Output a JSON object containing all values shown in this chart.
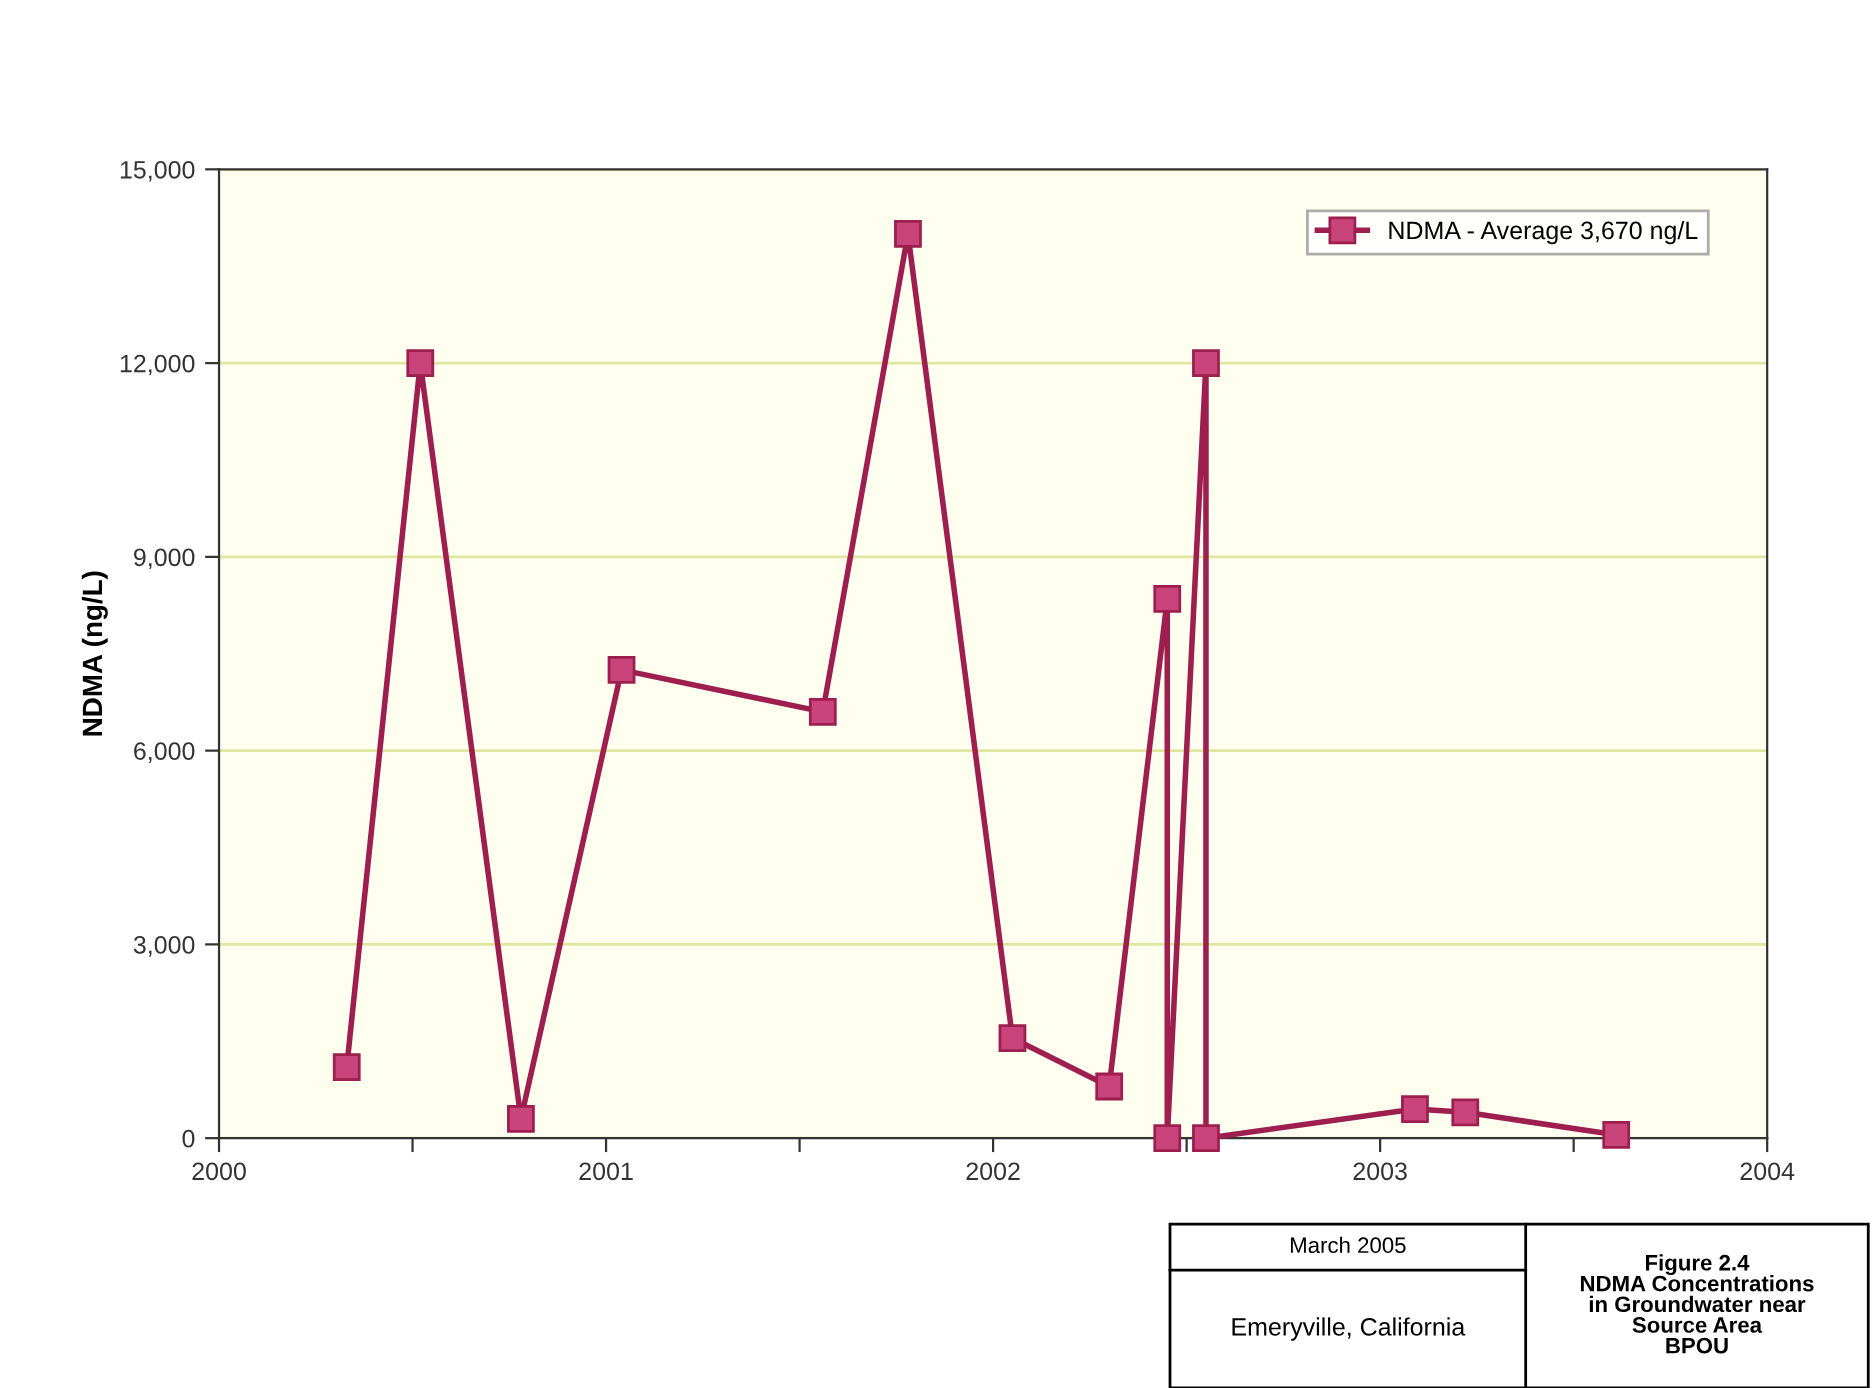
{
  "chart_data": {
    "type": "line",
    "ylabel": "NDMA (ng/L)",
    "x": [
      2000.33,
      2000.52,
      2000.78,
      2001.04,
      2001.56,
      2001.78,
      2002.05,
      2002.3,
      2002.45,
      2002.45,
      2002.55,
      2002.55,
      2003.09,
      2003.22,
      2003.61
    ],
    "series": [
      {
        "name": "NDMA - Average 3,670 ng/L",
        "color": "#9e1f4f",
        "values": [
          1100,
          12000,
          300,
          7250,
          6600,
          14000,
          1550,
          800,
          8350,
          0,
          12000,
          0,
          450,
          400,
          50
        ]
      }
    ],
    "xlim": [
      2000,
      2004
    ],
    "xticks": [
      2000,
      {
        "value": 2000.5,
        "label": null
      },
      2001,
      {
        "value": 2001.5,
        "label": null
      },
      2002,
      {
        "value": 2002.5,
        "label": null
      },
      2003,
      {
        "value": 2003.5,
        "label": null
      },
      2004
    ],
    "ylim": [
      0,
      15000
    ],
    "yticks": [
      0,
      {
        "value": 3000,
        "label": "3,000"
      },
      {
        "value": 6000,
        "label": "6,000"
      },
      {
        "value": 9000,
        "label": "9,000"
      },
      {
        "value": 12000,
        "label": "12,000"
      },
      {
        "value": 15000,
        "label": "15,000"
      }
    ],
    "grid": "y",
    "legend": "top right",
    "marker": "square",
    "line_style": "solid",
    "annotations": [
      "March 2005",
      "Emeryville, California",
      "Figure 2.4\nNDMA Concentrations in Groundwater near Source Area BPOU"
    ]
  }
}
